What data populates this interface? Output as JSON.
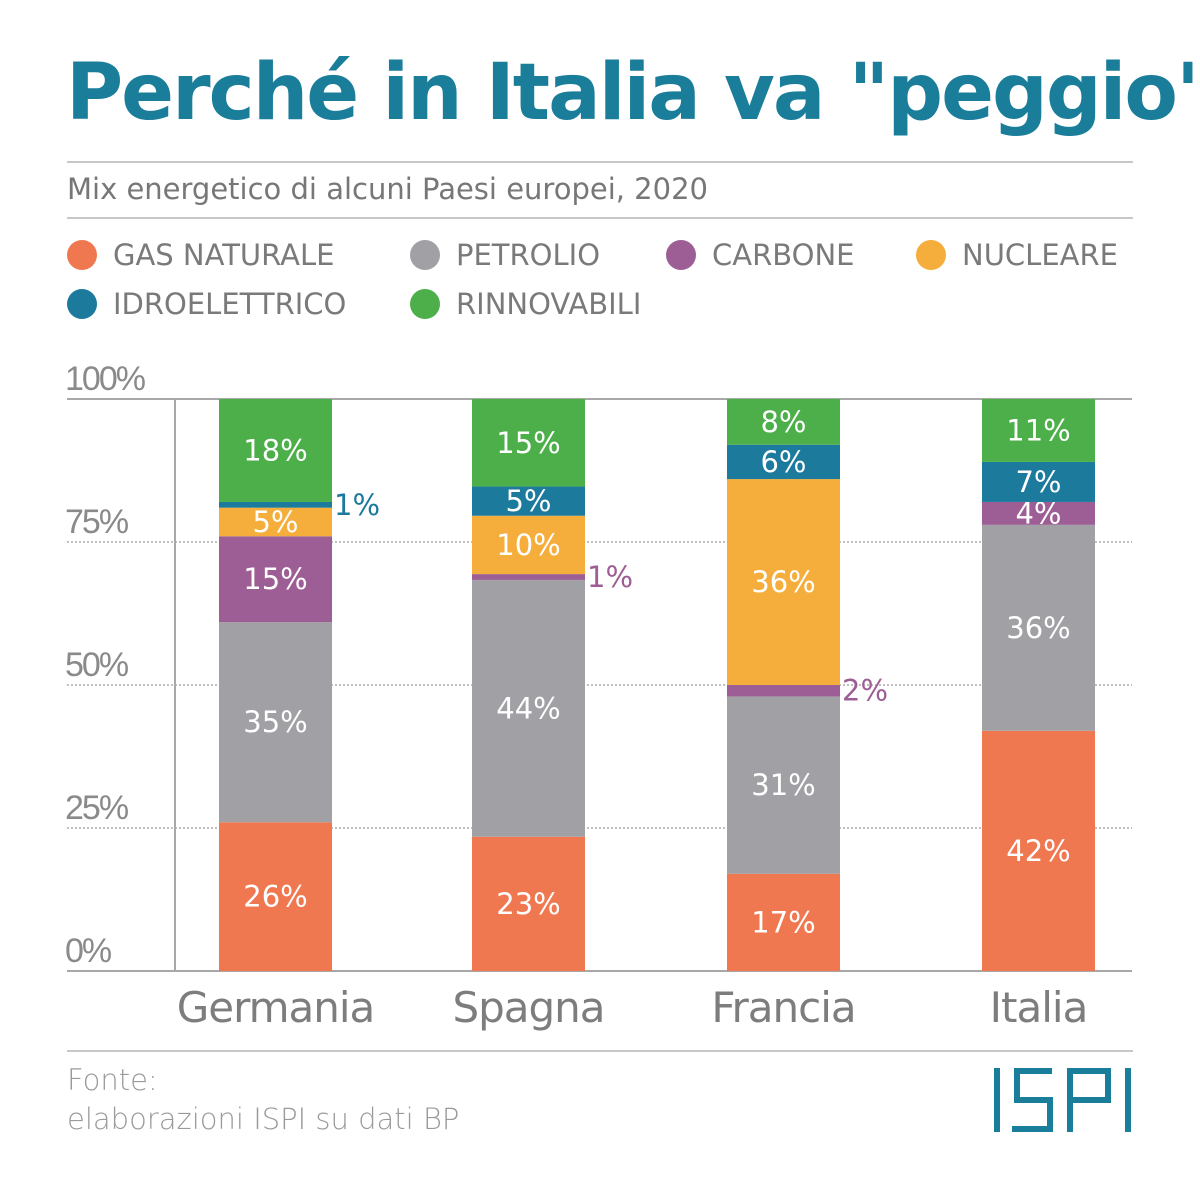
{
  "title": "Perché in Italia va \"peggio\"?",
  "subtitle": "Mix energetico di alcuni Paesi europei, 2020",
  "legend": [
    {
      "label": "GAS NATURALE",
      "color": "#F07850"
    },
    {
      "label": "PETROLIO",
      "color": "#A0A0A5"
    },
    {
      "label": "CARBONE",
      "color": "#9C5E94"
    },
    {
      "label": "NUCLEARE",
      "color": "#F5AE3C"
    },
    {
      "label": "IDROELETTRICO",
      "color": "#1C7A9C"
    },
    {
      "label": "RINNOVABILI",
      "color": "#4CAF4A"
    }
  ],
  "source": {
    "line1": "Fonte:",
    "line2": "elaborazioni ISPI su dati BP"
  },
  "logo": "ISPI",
  "chart_data": {
    "type": "bar",
    "stacked": true,
    "categories": [
      "Germania",
      "Spagna",
      "Francia",
      "Italia"
    ],
    "yticks": [
      "0%",
      "25%",
      "50%",
      "75%",
      "100%"
    ],
    "ylim": [
      0,
      100
    ],
    "grid": true,
    "series": [
      {
        "name": "GAS NATURALE",
        "values": [
          26,
          23,
          17,
          42
        ]
      },
      {
        "name": "PETROLIO",
        "values": [
          35,
          44,
          31,
          36
        ]
      },
      {
        "name": "CARBONE",
        "values": [
          15,
          1,
          2,
          4
        ]
      },
      {
        "name": "NUCLEARE",
        "values": [
          5,
          10,
          36,
          0
        ]
      },
      {
        "name": "IDROELETTRICO",
        "values": [
          1,
          5,
          6,
          7
        ]
      },
      {
        "name": "RINNOVABILI",
        "values": [
          18,
          15,
          8,
          11
        ]
      }
    ],
    "labels": [
      [
        "26%",
        "35%",
        "15%",
        "5%",
        "1%",
        "18%"
      ],
      [
        "23%",
        "44%",
        "1%",
        "10%",
        "5%",
        "15%"
      ],
      [
        "17%",
        "31%",
        "2%",
        "36%",
        "6%",
        "8%"
      ],
      [
        "42%",
        "36%",
        "4%",
        "",
        "7%",
        "11%"
      ]
    ]
  }
}
